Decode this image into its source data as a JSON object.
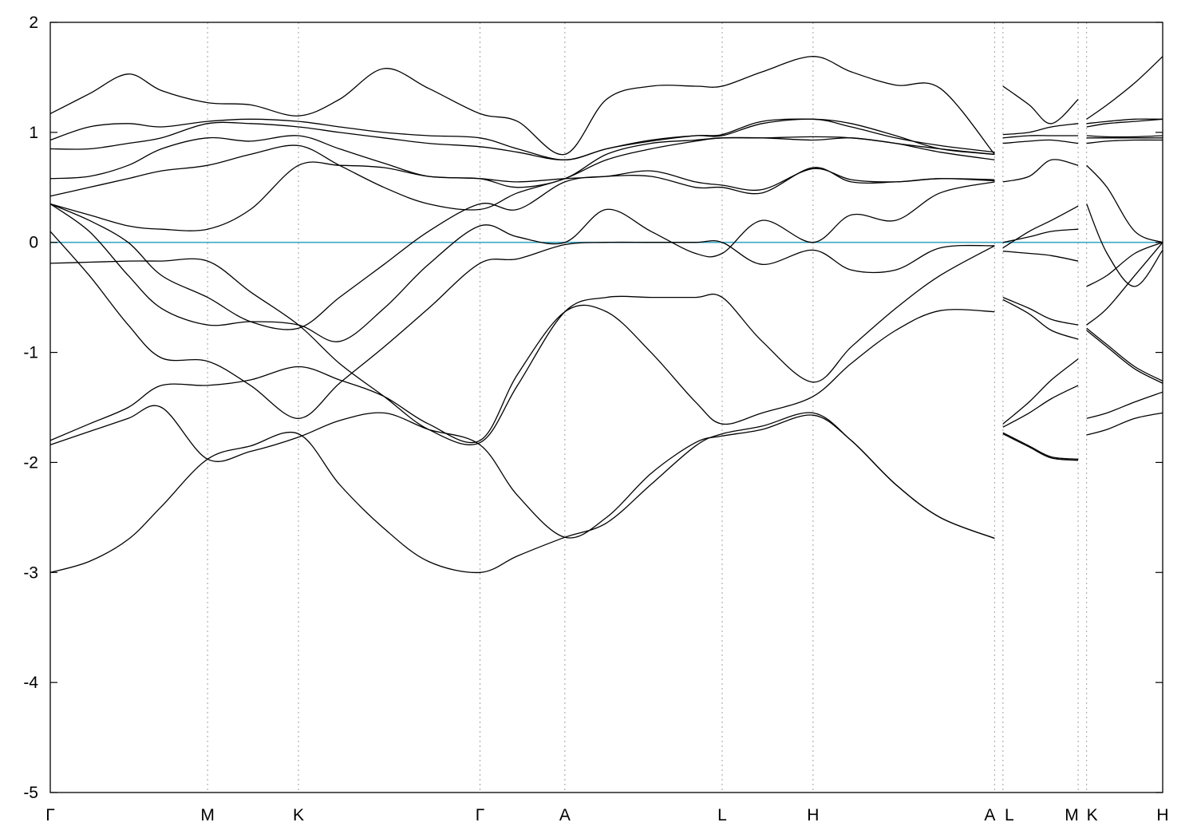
{
  "chart_data": {
    "type": "line",
    "title": "",
    "xlabel": "",
    "ylabel": "",
    "ylim": [
      -5,
      2
    ],
    "yticks": [
      -5,
      -4,
      -3,
      -2,
      -1,
      0,
      1,
      2
    ],
    "ytick_labels": [
      "-5",
      "-4",
      "-3",
      "-2",
      "-1",
      "0",
      "1",
      "2"
    ],
    "kpath": {
      "labels": [
        "Γ",
        "M",
        "K",
        "Γ",
        "A",
        "L",
        "H",
        "A",
        "L",
        "M",
        "K",
        "H"
      ],
      "positions": [
        0,
        0.1414,
        0.2231,
        0.3863,
        0.4626,
        0.604,
        0.6857,
        0.8489,
        0.8564,
        0.924,
        0.9316,
        1.0
      ]
    },
    "fermi_level": 0,
    "grid": "vertical dashed lines at high-symmetry points",
    "colors": {
      "bands": "#000000",
      "fermi": "#3fa7c4",
      "separators": "#a0a0a0"
    },
    "series": [
      {
        "x": [
          0,
          0.035,
          0.07,
          0.1,
          0.1414,
          0.18,
          0.2231,
          0.26,
          0.3,
          0.34,
          0.3863,
          0.42,
          0.4626,
          0.5,
          0.54,
          0.58,
          0.604,
          0.64,
          0.6857,
          0.72,
          0.76,
          0.8,
          0.8489
        ],
        "values": [
          -3.0,
          -2.9,
          -2.7,
          -2.4,
          -1.97,
          -1.85,
          -1.74,
          -2.2,
          -2.6,
          -2.9,
          -3.0,
          -2.85,
          -2.68,
          -2.55,
          -2.2,
          -1.85,
          -1.74,
          -1.67,
          -1.55,
          -1.8,
          -2.2,
          -2.5,
          -2.69
        ]
      },
      {
        "x": [
          0,
          0.035,
          0.07,
          0.1,
          0.1414,
          0.18,
          0.2231,
          0.26,
          0.3,
          0.34,
          0.3863,
          0.42,
          0.4626,
          0.5,
          0.54,
          0.58,
          0.604,
          0.64,
          0.6857,
          0.72,
          0.76,
          0.8,
          0.8489
        ],
        "values": [
          -1.84,
          -1.72,
          -1.6,
          -1.5,
          -1.97,
          -1.9,
          -1.77,
          -1.62,
          -1.55,
          -1.7,
          -1.84,
          -2.3,
          -2.68,
          -2.5,
          -2.1,
          -1.82,
          -1.76,
          -1.7,
          -1.57,
          -1.8,
          -2.2,
          -2.5,
          -2.69
        ]
      },
      {
        "x": [
          0,
          0.035,
          0.07,
          0.1,
          0.1414,
          0.18,
          0.2231,
          0.26,
          0.3,
          0.34,
          0.3863,
          0.42,
          0.4626,
          0.5,
          0.54,
          0.58,
          0.604,
          0.64,
          0.6857,
          0.72,
          0.76,
          0.8,
          0.8489
        ],
        "values": [
          -1.8,
          -1.65,
          -1.5,
          -1.3,
          -1.3,
          -1.25,
          -1.13,
          -1.25,
          -1.4,
          -1.65,
          -1.8,
          -1.2,
          -0.63,
          -0.63,
          -1.0,
          -1.45,
          -1.65,
          -1.55,
          -1.4,
          -1.1,
          -0.8,
          -0.62,
          -0.63
        ]
      },
      {
        "x": [
          0,
          0.035,
          0.07,
          0.1,
          0.1414,
          0.18,
          0.2231,
          0.26,
          0.3,
          0.34,
          0.3863,
          0.42,
          0.4626,
          0.5,
          0.54,
          0.58,
          0.604,
          0.64,
          0.6857,
          0.72,
          0.76,
          0.8,
          0.8489
        ],
        "values": [
          -0.19,
          -0.18,
          -0.17,
          -0.17,
          -0.17,
          -0.45,
          -0.75,
          -1.1,
          -1.4,
          -1.7,
          -1.82,
          -1.3,
          -0.63,
          -0.5,
          -0.5,
          -0.5,
          -0.5,
          -0.9,
          -1.27,
          -0.95,
          -0.6,
          -0.3,
          -0.03
        ]
      },
      {
        "x": [
          0,
          0.035,
          0.07,
          0.1,
          0.1414,
          0.18,
          0.2231,
          0.26,
          0.3,
          0.34,
          0.3863,
          0.42,
          0.4626,
          0.5,
          0.54,
          0.58,
          0.604,
          0.64,
          0.6857,
          0.72,
          0.76,
          0.8,
          0.8489
        ],
        "values": [
          0.1,
          -0.3,
          -0.75,
          -1.05,
          -1.08,
          -1.3,
          -1.6,
          -1.28,
          -0.95,
          -0.6,
          -0.19,
          -0.15,
          -0.02,
          0.0,
          0.0,
          0.0,
          0.0,
          -0.2,
          -0.07,
          -0.25,
          -0.25,
          -0.05,
          -0.03
        ]
      },
      {
        "x": [
          0,
          0.035,
          0.07,
          0.1,
          0.1414,
          0.18,
          0.2231,
          0.26,
          0.3,
          0.34,
          0.3863,
          0.42,
          0.4626,
          0.5,
          0.54,
          0.58,
          0.604,
          0.64,
          0.6857,
          0.72,
          0.76,
          0.8,
          0.8489
        ],
        "values": [
          0.35,
          0.1,
          -0.3,
          -0.6,
          -0.75,
          -0.72,
          -0.75,
          -0.9,
          -0.6,
          -0.2,
          0.15,
          0.05,
          0.0,
          0.3,
          0.1,
          -0.1,
          -0.1,
          0.2,
          0.0,
          0.25,
          0.2,
          0.45,
          0.55
        ]
      },
      {
        "x": [
          0,
          0.035,
          0.07,
          0.1,
          0.1414,
          0.18,
          0.2231,
          0.26,
          0.3,
          0.34,
          0.3863,
          0.42,
          0.4626,
          0.5,
          0.54,
          0.58,
          0.604,
          0.64,
          0.6857,
          0.72,
          0.76,
          0.8,
          0.8489
        ],
        "values": [
          0.35,
          0.2,
          0.0,
          -0.3,
          -0.5,
          -0.72,
          -0.78,
          -0.5,
          -0.2,
          0.1,
          0.35,
          0.3,
          0.55,
          0.6,
          0.6,
          0.5,
          0.5,
          0.45,
          0.68,
          0.55,
          0.55,
          0.58,
          0.56
        ]
      },
      {
        "x": [
          0,
          0.035,
          0.07,
          0.1,
          0.1414,
          0.18,
          0.2231,
          0.26,
          0.3,
          0.34,
          0.3863,
          0.42,
          0.4626,
          0.5,
          0.54,
          0.58,
          0.604,
          0.64,
          0.6857,
          0.72,
          0.76,
          0.8,
          0.8489
        ],
        "values": [
          0.35,
          0.25,
          0.15,
          0.12,
          0.12,
          0.3,
          0.7,
          0.7,
          0.68,
          0.6,
          0.58,
          0.55,
          0.58,
          0.6,
          0.65,
          0.55,
          0.52,
          0.48,
          0.67,
          0.57,
          0.55,
          0.58,
          0.57
        ]
      },
      {
        "x": [
          0,
          0.035,
          0.07,
          0.1,
          0.1414,
          0.18,
          0.2231,
          0.26,
          0.3,
          0.34,
          0.3863,
          0.42,
          0.4626,
          0.5,
          0.54,
          0.58,
          0.604,
          0.64,
          0.6857,
          0.72,
          0.76,
          0.8,
          0.8489
        ],
        "values": [
          0.42,
          0.5,
          0.58,
          0.65,
          0.7,
          0.8,
          0.88,
          0.7,
          0.5,
          0.35,
          0.3,
          0.45,
          0.58,
          0.75,
          0.85,
          0.92,
          0.95,
          0.95,
          0.96,
          0.95,
          0.9,
          0.82,
          0.75
        ]
      },
      {
        "x": [
          0,
          0.035,
          0.07,
          0.1,
          0.1414,
          0.18,
          0.2231,
          0.26,
          0.3,
          0.34,
          0.3863,
          0.42,
          0.4626,
          0.5,
          0.54,
          0.58,
          0.604,
          0.64,
          0.6857,
          0.72,
          0.76,
          0.8,
          0.8489
        ],
        "values": [
          0.58,
          0.6,
          0.7,
          0.85,
          0.95,
          0.92,
          0.97,
          0.85,
          0.72,
          0.6,
          0.58,
          0.5,
          0.58,
          0.8,
          0.9,
          0.93,
          0.95,
          0.95,
          0.93,
          0.95,
          0.9,
          0.85,
          0.8
        ]
      },
      {
        "x": [
          0,
          0.035,
          0.07,
          0.1,
          0.1414,
          0.18,
          0.2231,
          0.26,
          0.3,
          0.34,
          0.3863,
          0.42,
          0.4626,
          0.5,
          0.54,
          0.58,
          0.604,
          0.64,
          0.6857,
          0.72,
          0.76,
          0.8,
          0.8489
        ],
        "values": [
          0.85,
          0.85,
          0.9,
          0.95,
          1.08,
          1.08,
          1.05,
          1.0,
          0.95,
          0.9,
          0.87,
          0.82,
          0.75,
          0.85,
          0.93,
          0.97,
          0.97,
          1.08,
          1.12,
          1.05,
          0.95,
          0.88,
          0.82
        ]
      },
      {
        "x": [
          0,
          0.035,
          0.07,
          0.1,
          0.1414,
          0.18,
          0.2231,
          0.26,
          0.3,
          0.34,
          0.3863,
          0.42,
          0.4626,
          0.5,
          0.54,
          0.58,
          0.604,
          0.64,
          0.6857,
          0.72,
          0.76,
          0.8,
          0.8489
        ],
        "values": [
          0.93,
          1.05,
          1.08,
          1.05,
          1.1,
          1.12,
          1.1,
          1.05,
          1.0,
          0.97,
          0.95,
          0.85,
          0.75,
          0.85,
          0.92,
          0.97,
          0.98,
          1.1,
          1.12,
          1.08,
          0.97,
          0.85,
          0.8
        ]
      },
      {
        "x": [
          0,
          0.035,
          0.07,
          0.1,
          0.1414,
          0.18,
          0.2231,
          0.26,
          0.3,
          0.34,
          0.3863,
          0.42,
          0.4626,
          0.5,
          0.54,
          0.58,
          0.604,
          0.64,
          0.6857,
          0.72,
          0.76,
          0.8,
          0.8489
        ],
        "values": [
          1.17,
          1.35,
          1.53,
          1.38,
          1.27,
          1.25,
          1.15,
          1.3,
          1.58,
          1.4,
          1.17,
          1.1,
          0.8,
          1.3,
          1.42,
          1.42,
          1.42,
          1.55,
          1.69,
          1.55,
          1.43,
          1.4,
          0.8
        ]
      },
      {
        "x": [
          0.8564,
          0.88,
          0.9,
          0.924
        ],
        "values": [
          1.42,
          1.25,
          1.08,
          1.3
        ]
      },
      {
        "x": [
          0.8564,
          0.88,
          0.9,
          0.924
        ],
        "values": [
          0.98,
          1.0,
          1.05,
          1.08
        ]
      },
      {
        "x": [
          0.8564,
          0.88,
          0.9,
          0.924
        ],
        "values": [
          0.95,
          0.97,
          0.97,
          0.97
        ]
      },
      {
        "x": [
          0.8564,
          0.88,
          0.9,
          0.924
        ],
        "values": [
          0.9,
          0.92,
          0.93,
          0.9
        ]
      },
      {
        "x": [
          0.8564,
          0.88,
          0.9,
          0.924
        ],
        "values": [
          0.55,
          0.6,
          0.75,
          0.7
        ]
      },
      {
        "x": [
          0.8564,
          0.88,
          0.9,
          0.924
        ],
        "values": [
          0.0,
          0.05,
          0.1,
          0.12
        ]
      },
      {
        "x": [
          0.8564,
          0.88,
          0.9,
          0.924
        ],
        "values": [
          -0.08,
          -0.1,
          -0.12,
          -0.17
        ]
      },
      {
        "x": [
          0.8564,
          0.88,
          0.9,
          0.924
        ],
        "values": [
          -0.05,
          0.1,
          0.2,
          0.33
        ]
      },
      {
        "x": [
          0.8564,
          0.88,
          0.9,
          0.924
        ],
        "values": [
          -0.5,
          -0.6,
          -0.7,
          -0.75
        ]
      },
      {
        "x": [
          0.8564,
          0.88,
          0.9,
          0.924
        ],
        "values": [
          -0.52,
          -0.65,
          -0.8,
          -0.88
        ]
      },
      {
        "x": [
          0.8564,
          0.88,
          0.9,
          0.924
        ],
        "values": [
          -1.65,
          -1.45,
          -1.25,
          -1.06
        ]
      },
      {
        "x": [
          0.8564,
          0.88,
          0.9,
          0.924
        ],
        "values": [
          -1.68,
          -1.55,
          -1.42,
          -1.3
        ]
      },
      {
        "x": [
          0.8564,
          0.88,
          0.9,
          0.924
        ],
        "values": [
          -1.73,
          -1.85,
          -1.95,
          -1.97
        ]
      },
      {
        "x": [
          0.8564,
          0.88,
          0.9,
          0.924
        ],
        "values": [
          -1.74,
          -1.86,
          -1.96,
          -1.98
        ]
      },
      {
        "x": [
          0.9316,
          0.95,
          0.975,
          1.0
        ],
        "values": [
          1.12,
          1.25,
          1.45,
          1.69
        ]
      },
      {
        "x": [
          0.9316,
          0.95,
          0.975,
          1.0
        ],
        "values": [
          1.08,
          1.1,
          1.12,
          1.12
        ]
      },
      {
        "x": [
          0.9316,
          0.95,
          0.975,
          1.0
        ],
        "values": [
          1.05,
          1.08,
          1.1,
          1.12
        ]
      },
      {
        "x": [
          0.9316,
          0.95,
          0.975,
          1.0
        ],
        "values": [
          0.97,
          0.96,
          0.96,
          0.97
        ]
      },
      {
        "x": [
          0.9316,
          0.95,
          0.975,
          1.0
        ],
        "values": [
          0.95,
          0.95,
          0.95,
          0.95
        ]
      },
      {
        "x": [
          0.9316,
          0.95,
          0.975,
          1.0
        ],
        "values": [
          0.9,
          0.92,
          0.93,
          0.93
        ]
      },
      {
        "x": [
          0.9316,
          0.95,
          0.975,
          1.0
        ],
        "values": [
          0.7,
          0.5,
          0.1,
          0.0
        ]
      },
      {
        "x": [
          0.9316,
          0.95,
          0.975,
          1.0
        ],
        "values": [
          0.35,
          -0.1,
          -0.4,
          -0.07
        ]
      },
      {
        "x": [
          0.9316,
          0.95,
          0.975,
          1.0
        ],
        "values": [
          -0.4,
          -0.3,
          -0.1,
          0.0
        ]
      },
      {
        "x": [
          0.9316,
          0.95,
          0.975,
          1.0
        ],
        "values": [
          -0.75,
          -0.6,
          -0.3,
          0.0
        ]
      },
      {
        "x": [
          0.9316,
          0.95,
          0.975,
          1.0
        ],
        "values": [
          -0.8,
          -0.95,
          -1.15,
          -1.28
        ]
      },
      {
        "x": [
          0.9316,
          0.95,
          0.975,
          1.0
        ],
        "values": [
          -0.78,
          -0.93,
          -1.13,
          -1.26
        ]
      },
      {
        "x": [
          0.9316,
          0.95,
          0.975,
          1.0
        ],
        "values": [
          -1.6,
          -1.55,
          -1.45,
          -1.36
        ]
      },
      {
        "x": [
          0.9316,
          0.95,
          0.975,
          1.0
        ],
        "values": [
          -1.75,
          -1.7,
          -1.6,
          -1.55
        ]
      }
    ]
  }
}
